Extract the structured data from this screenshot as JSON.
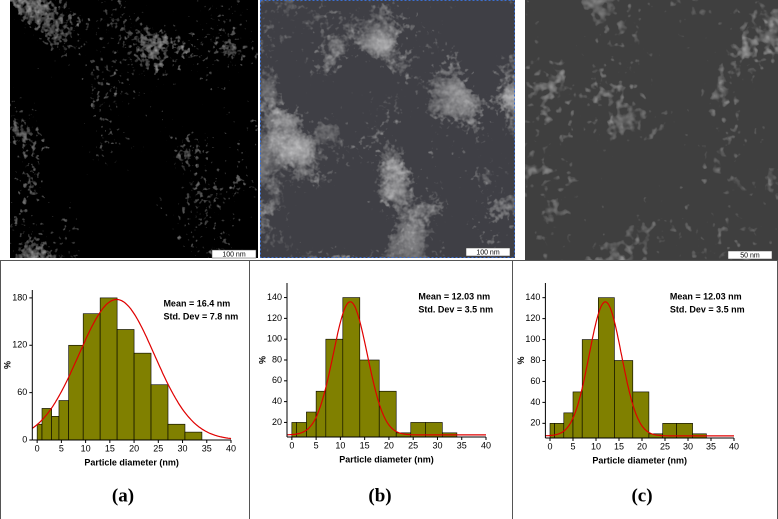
{
  "images": [
    {
      "scale_bar": "100 nm"
    },
    {
      "scale_bar": "100 nm"
    },
    {
      "scale_bar": "50 nm"
    }
  ],
  "chart_data": [
    {
      "type": "histogram",
      "panel_label": "(a)",
      "xlabel": "Particle diameter (nm)",
      "ylabel": "%",
      "bins": [
        0,
        1,
        3,
        4.5,
        6.5,
        9.5,
        13,
        16.5,
        20,
        23.5,
        27,
        30.5,
        34
      ],
      "values": [
        20,
        40,
        30,
        50,
        120,
        160,
        180,
        140,
        110,
        70,
        20,
        10
      ],
      "color": "#808000",
      "xlim": [
        -1,
        40
      ],
      "xticks": [
        0,
        5,
        10,
        15,
        20,
        25,
        30,
        35,
        40
      ],
      "ylim": [
        0,
        190
      ],
      "yticks": [
        0,
        60,
        120,
        180
      ],
      "annotations": [
        "Mean = 16.4  nm",
        "Std. Dev = 7.8 nm"
      ],
      "fit": {
        "color": "#e00000",
        "mean": 16.4,
        "sd": 7.8,
        "amplitude": 178,
        "offset": 0
      }
    },
    {
      "type": "histogram",
      "panel_label": "(b)",
      "xlabel": "Particle diameter (nm)",
      "ylabel": "%",
      "bins": [
        0,
        1,
        3,
        5,
        7,
        10.5,
        14,
        18,
        21.5,
        24.5,
        27.5,
        31,
        34
      ],
      "values": [
        20,
        20,
        30,
        50,
        100,
        140,
        80,
        50,
        10,
        20,
        20,
        10
      ],
      "color": "#808000",
      "xlim": [
        -1,
        40
      ],
      "xticks": [
        0,
        5,
        10,
        15,
        20,
        25,
        30,
        35,
        40
      ],
      "ylim": [
        6,
        154
      ],
      "yticks": [
        20,
        40,
        60,
        80,
        100,
        120,
        140
      ],
      "annotations": [
        "Mean = 12.03  nm",
        "Std. Dev = 3.5 nm"
      ],
      "fit": {
        "color": "#e00000",
        "mean": 12.03,
        "sd": 3.5,
        "amplitude": 128,
        "offset": 8
      }
    },
    {
      "type": "histogram",
      "panel_label": "(c)",
      "xlabel": "Particle diameter (nm)",
      "ylabel": "%",
      "bins": [
        0,
        1,
        3,
        5,
        7,
        10.5,
        14,
        18,
        21.5,
        24.5,
        27.5,
        31,
        34
      ],
      "values": [
        20,
        20,
        30,
        50,
        100,
        140,
        80,
        50,
        10,
        20,
        20,
        10
      ],
      "color": "#808000",
      "xlim": [
        -1,
        40
      ],
      "xticks": [
        0,
        5,
        10,
        15,
        20,
        25,
        30,
        35,
        40
      ],
      "ylim": [
        6,
        154
      ],
      "yticks": [
        20,
        40,
        60,
        80,
        100,
        120,
        140
      ],
      "annotations": [
        "Mean = 12.03  nm",
        "Std. Dev = 3.5 nm"
      ],
      "fit": {
        "color": "#e00000",
        "mean": 12.03,
        "sd": 3.5,
        "amplitude": 128,
        "offset": 8
      }
    }
  ]
}
